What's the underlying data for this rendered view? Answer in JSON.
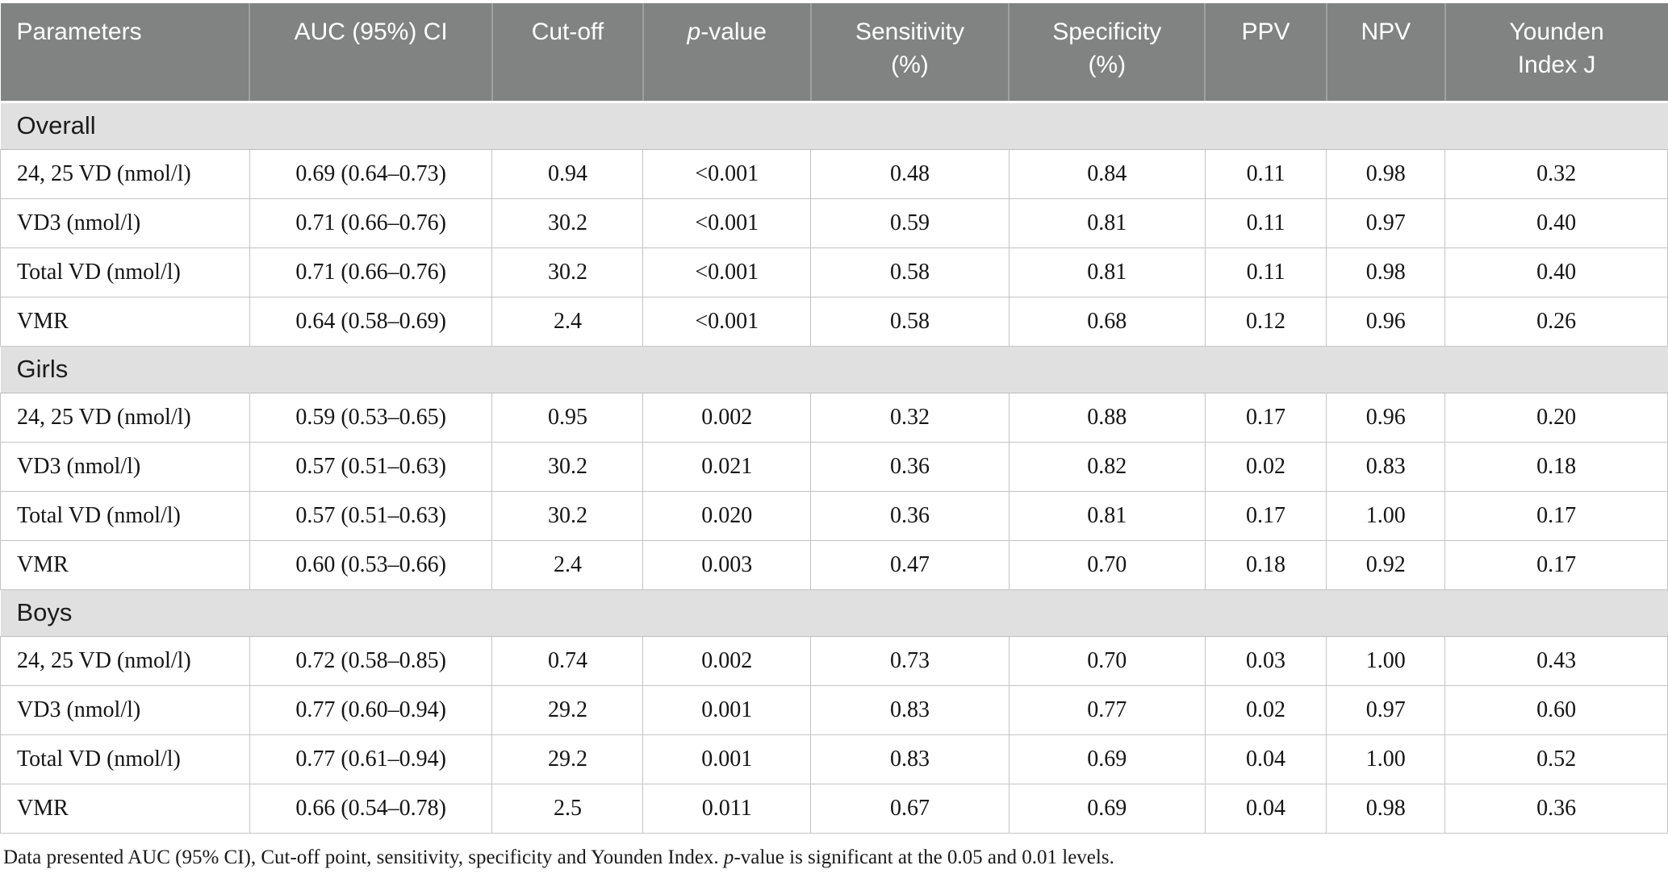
{
  "table": {
    "columns": [
      {
        "label": "Parameters",
        "lines": [
          "Parameters"
        ]
      },
      {
        "label": "AUC (95%) CI",
        "lines": [
          "AUC (95%) CI"
        ]
      },
      {
        "label": "Cut-off",
        "lines": [
          "Cut-off"
        ]
      },
      {
        "label": "p-value",
        "lines": [
          "p-value"
        ],
        "italic_p": true
      },
      {
        "label": "Sensitivity (%)",
        "lines": [
          "Sensitivity",
          "(%)"
        ]
      },
      {
        "label": "Specificity (%)",
        "lines": [
          "Specificity",
          "(%)"
        ]
      },
      {
        "label": "PPV",
        "lines": [
          "PPV"
        ]
      },
      {
        "label": "NPV",
        "lines": [
          "NPV"
        ]
      },
      {
        "label": "Younden Index J",
        "lines": [
          "Younden",
          "Index J"
        ]
      }
    ],
    "sections": [
      {
        "title": "Overall",
        "rows": [
          [
            "24, 25 VD (nmol/l)",
            "0.69 (0.64–0.73)",
            "0.94",
            "<0.001",
            "0.48",
            "0.84",
            "0.11",
            "0.98",
            "0.32"
          ],
          [
            "VD3 (nmol/l)",
            "0.71 (0.66–0.76)",
            "30.2",
            "<0.001",
            "0.59",
            "0.81",
            "0.11",
            "0.97",
            "0.40"
          ],
          [
            "Total VD (nmol/l)",
            "0.71 (0.66–0.76)",
            "30.2",
            "<0.001",
            "0.58",
            "0.81",
            "0.11",
            "0.98",
            "0.40"
          ],
          [
            "VMR",
            "0.64 (0.58–0.69)",
            "2.4",
            "<0.001",
            "0.58",
            "0.68",
            "0.12",
            "0.96",
            "0.26"
          ]
        ]
      },
      {
        "title": "Girls",
        "rows": [
          [
            "24, 25 VD (nmol/l)",
            "0.59 (0.53–0.65)",
            "0.95",
            "0.002",
            "0.32",
            "0.88",
            "0.17",
            "0.96",
            "0.20"
          ],
          [
            "VD3 (nmol/l)",
            "0.57 (0.51–0.63)",
            "30.2",
            "0.021",
            "0.36",
            "0.82",
            "0.02",
            "0.83",
            "0.18"
          ],
          [
            "Total VD (nmol/l)",
            "0.57 (0.51–0.63)",
            "30.2",
            "0.020",
            "0.36",
            "0.81",
            "0.17",
            "1.00",
            "0.17"
          ],
          [
            "VMR",
            "0.60 (0.53–0.66)",
            "2.4",
            "0.003",
            "0.47",
            "0.70",
            "0.18",
            "0.92",
            "0.17"
          ]
        ]
      },
      {
        "title": "Boys",
        "rows": [
          [
            "24, 25 VD (nmol/l)",
            "0.72 (0.58–0.85)",
            "0.74",
            "0.002",
            "0.73",
            "0.70",
            "0.03",
            "1.00",
            "0.43"
          ],
          [
            "VD3 (nmol/l)",
            "0.77 (0.60–0.94)",
            "29.2",
            "0.001",
            "0.83",
            "0.77",
            "0.02",
            "0.97",
            "0.60"
          ],
          [
            "Total VD (nmol/l)",
            "0.77 (0.61–0.94)",
            "29.2",
            "0.001",
            "0.83",
            "0.69",
            "0.04",
            "1.00",
            "0.52"
          ],
          [
            "VMR",
            "0.66 (0.54–0.78)",
            "2.5",
            "0.011",
            "0.67",
            "0.69",
            "0.04",
            "0.98",
            "0.36"
          ]
        ]
      }
    ],
    "footnote": {
      "pre": "Data presented AUC (95% CI), Cut-off point, sensitivity, specificity and Younden Index. ",
      "italic": "p",
      "post": "-value is significant at the 0.05 and 0.01 levels."
    }
  },
  "colors": {
    "header_bg": "#818383",
    "header_text": "#ffffff",
    "section_bg": "#e1e0e0",
    "row_bg": "#ffffff",
    "grid_line": "#c4c4c4"
  }
}
